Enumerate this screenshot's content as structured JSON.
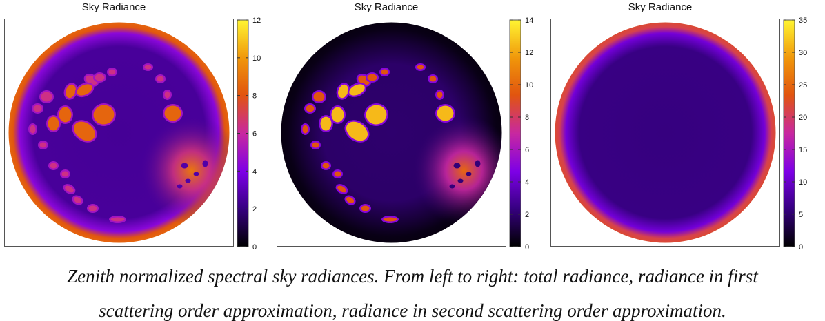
{
  "chart_data": [
    {
      "type": "heatmap",
      "title": "Sky Radiance",
      "colorbar": {
        "min": 0,
        "max": 12,
        "ticks": [
          0,
          2,
          4,
          6,
          8,
          10,
          12
        ]
      },
      "background_level": 2.5,
      "rim_level": 8.5,
      "outer_dark": false,
      "sun_glow": {
        "peak": 9,
        "inner": 6.5
      },
      "cloud_level": 8.5,
      "cloud_edge_level": 5
    },
    {
      "type": "heatmap",
      "title": "Sky Radiance",
      "colorbar": {
        "min": 0,
        "max": 14,
        "ticks": [
          0,
          2,
          4,
          6,
          8,
          10,
          12,
          14
        ]
      },
      "background_level": 2,
      "rim_level": 0.3,
      "outer_dark": true,
      "sun_glow": {
        "peak": 10,
        "inner": 7
      },
      "cloud_level": 12.5,
      "cloud_edge_level": 5
    },
    {
      "type": "heatmap",
      "title": "Sky Radiance",
      "colorbar": {
        "min": 0,
        "max": 35,
        "ticks": [
          0,
          5,
          10,
          15,
          20,
          25,
          30,
          35
        ]
      },
      "background_level": 6,
      "rim_level": 22,
      "outer_dark": false,
      "sun_glow": null,
      "cloud_level": null,
      "cloud_edge_level": null
    }
  ],
  "caption": {
    "line1": "Zenith normalized spectral sky radiances. From left to right: total radiance, radiance in first",
    "line2": "scattering order approximation, radiance in second scattering order approximation."
  }
}
